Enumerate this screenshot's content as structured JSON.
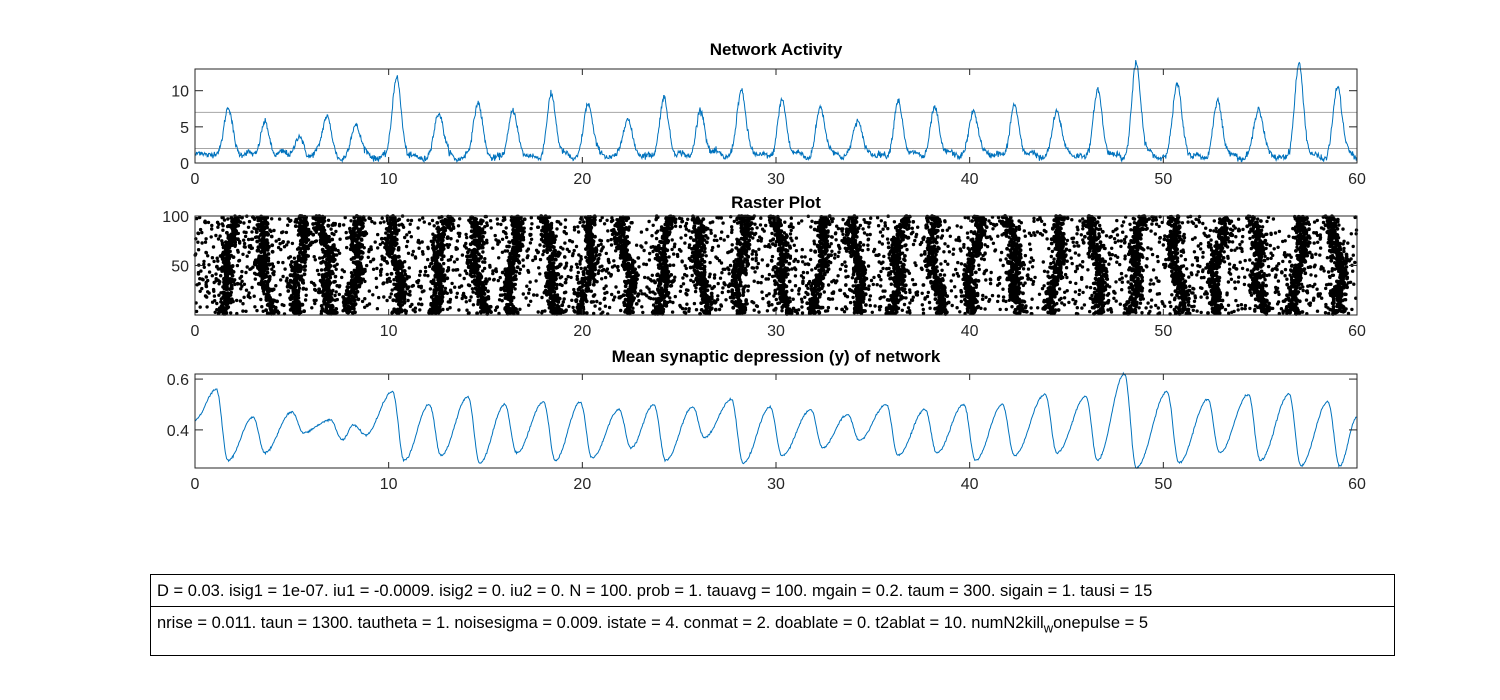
{
  "colors": {
    "line": "#0072bd",
    "threshold": "#a6a6a6",
    "raster": "#000000",
    "axis": "#262626"
  },
  "chart_data": [
    {
      "type": "line",
      "title": "Network Activity",
      "xlim": [
        0,
        60
      ],
      "ylim": [
        0,
        13
      ],
      "xticks": [
        "0",
        "10",
        "20",
        "30",
        "40",
        "50",
        "60"
      ],
      "yticks": [
        "0",
        "5",
        "10"
      ],
      "threshold_lines": [
        2,
        7
      ],
      "grid": false,
      "peaks": [
        {
          "t": 1.7,
          "h": 7.0
        },
        {
          "t": 3.6,
          "h": 4.8
        },
        {
          "t": 5.4,
          "h": 2.8
        },
        {
          "t": 6.8,
          "h": 5.3
        },
        {
          "t": 8.3,
          "h": 4.2
        },
        {
          "t": 10.4,
          "h": 10.5
        },
        {
          "t": 12.6,
          "h": 5.7
        },
        {
          "t": 14.6,
          "h": 7.0
        },
        {
          "t": 16.4,
          "h": 6.0
        },
        {
          "t": 18.4,
          "h": 8.1
        },
        {
          "t": 20.3,
          "h": 7.3
        },
        {
          "t": 22.3,
          "h": 5.2
        },
        {
          "t": 24.2,
          "h": 8.0
        },
        {
          "t": 26.1,
          "h": 6.4
        },
        {
          "t": 28.2,
          "h": 9.4
        },
        {
          "t": 30.3,
          "h": 7.6
        },
        {
          "t": 32.3,
          "h": 6.9
        },
        {
          "t": 34.2,
          "h": 5.3
        },
        {
          "t": 36.3,
          "h": 7.6
        },
        {
          "t": 38.2,
          "h": 6.8
        },
        {
          "t": 40.2,
          "h": 6.7
        },
        {
          "t": 42.3,
          "h": 7.1
        },
        {
          "t": 44.5,
          "h": 6.4
        },
        {
          "t": 46.6,
          "h": 9.0
        },
        {
          "t": 48.6,
          "h": 12.8
        },
        {
          "t": 50.7,
          "h": 10.0
        },
        {
          "t": 52.8,
          "h": 7.4
        },
        {
          "t": 54.9,
          "h": 6.6
        },
        {
          "t": 57.0,
          "h": 12.2
        },
        {
          "t": 59.0,
          "h": 9.4
        }
      ]
    },
    {
      "type": "scatter",
      "title": "Raster Plot",
      "xlim": [
        0,
        60
      ],
      "ylim": [
        0,
        100
      ],
      "xticks": [
        "0",
        "10",
        "20",
        "30",
        "40",
        "50",
        "60"
      ],
      "yticks": [
        "50",
        "100"
      ],
      "n_neurons": 100,
      "bursts": [
        1.7,
        3.6,
        5.4,
        6.8,
        8.3,
        10.4,
        12.6,
        14.6,
        16.4,
        18.4,
        20.3,
        22.3,
        24.2,
        26.1,
        28.2,
        30.3,
        32.3,
        34.2,
        36.3,
        38.2,
        40.2,
        42.3,
        44.5,
        46.6,
        48.6,
        50.7,
        52.8,
        54.9,
        57.0,
        59.0
      ]
    },
    {
      "type": "line",
      "title": "Mean synaptic depression (y) of network",
      "xlim": [
        0,
        60
      ],
      "ylim": [
        0.25,
        0.62
      ],
      "xticks": [
        "0",
        "10",
        "20",
        "30",
        "40",
        "50",
        "60"
      ],
      "yticks": [
        "0.4",
        "0.6"
      ],
      "grid": false,
      "peaks": [
        {
          "t": 1.1,
          "hi": 0.56,
          "lo": 0.28
        },
        {
          "t": 3.0,
          "hi": 0.45,
          "lo": 0.31
        },
        {
          "t": 5.0,
          "hi": 0.47,
          "lo": 0.39
        },
        {
          "t": 7.0,
          "hi": 0.44,
          "lo": 0.36
        },
        {
          "t": 8.2,
          "hi": 0.42,
          "lo": 0.38
        },
        {
          "t": 10.2,
          "hi": 0.55,
          "lo": 0.28
        },
        {
          "t": 12.1,
          "hi": 0.5,
          "lo": 0.3
        },
        {
          "t": 14.1,
          "hi": 0.53,
          "lo": 0.27
        },
        {
          "t": 16.0,
          "hi": 0.5,
          "lo": 0.31
        },
        {
          "t": 18.0,
          "hi": 0.51,
          "lo": 0.28
        },
        {
          "t": 19.9,
          "hi": 0.51,
          "lo": 0.29
        },
        {
          "t": 21.9,
          "hi": 0.48,
          "lo": 0.33
        },
        {
          "t": 23.7,
          "hi": 0.5,
          "lo": 0.28
        },
        {
          "t": 25.7,
          "hi": 0.49,
          "lo": 0.37
        },
        {
          "t": 27.7,
          "hi": 0.52,
          "lo": 0.27
        },
        {
          "t": 29.7,
          "hi": 0.49,
          "lo": 0.3
        },
        {
          "t": 31.8,
          "hi": 0.48,
          "lo": 0.33
        },
        {
          "t": 33.7,
          "hi": 0.46,
          "lo": 0.36
        },
        {
          "t": 35.7,
          "hi": 0.5,
          "lo": 0.3
        },
        {
          "t": 37.7,
          "hi": 0.48,
          "lo": 0.31
        },
        {
          "t": 39.7,
          "hi": 0.5,
          "lo": 0.28
        },
        {
          "t": 41.7,
          "hi": 0.5,
          "lo": 0.3
        },
        {
          "t": 43.9,
          "hi": 0.54,
          "lo": 0.31
        },
        {
          "t": 46.0,
          "hi": 0.53,
          "lo": 0.28
        },
        {
          "t": 48.0,
          "hi": 0.62,
          "lo": 0.25
        },
        {
          "t": 50.2,
          "hi": 0.55,
          "lo": 0.27
        },
        {
          "t": 52.3,
          "hi": 0.52,
          "lo": 0.31
        },
        {
          "t": 54.4,
          "hi": 0.54,
          "lo": 0.28
        },
        {
          "t": 56.5,
          "hi": 0.54,
          "lo": 0.26
        },
        {
          "t": 58.5,
          "hi": 0.51,
          "lo": 0.26
        }
      ]
    }
  ],
  "params": {
    "row1": "D = 0.03. isig1 = 1e-07. iu1 = -0.0009. isig2 = 0. iu2 = 0. N = 100. prob = 1. tauavg = 100. mgain = 0.2. taum = 300. sigain = 1. tausi = 15",
    "row2_main": "nrise = 0.011. taun = 1300. tautheta = 1. noisesigma = 0.009. istate = 4. conmat = 2. doablate = 0. t2ablat = 10. numN2kill",
    "row2_sub": "w",
    "row2_tail": "onepulse = 5"
  }
}
